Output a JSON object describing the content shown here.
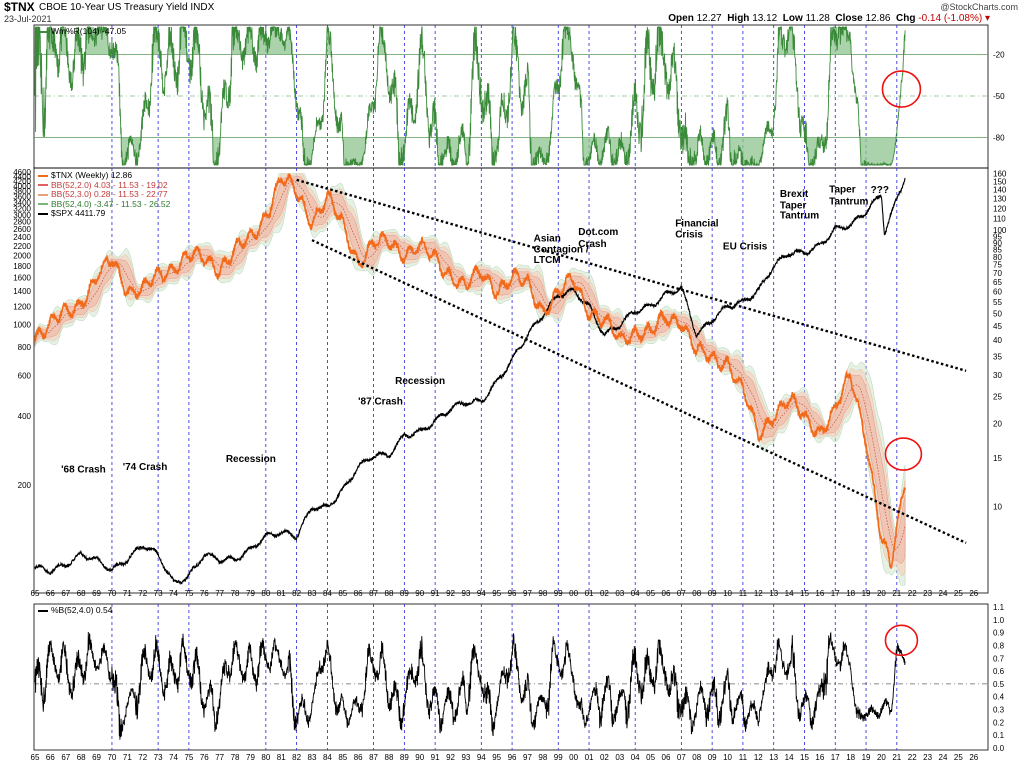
{
  "header": {
    "symbol": "$TNX",
    "name": "CBOE 10-Year US Treasury Yield INDX",
    "date": "23-Jul-2021",
    "open_label": "Open",
    "open": "12.27",
    "high_label": "High",
    "high": "13.12",
    "low_label": "Low",
    "low": "11.28",
    "close_label": "Close",
    "close": "12.86",
    "chg_label": "Chg",
    "chg": "-0.14 (-1.08%)",
    "watermark": "@StockCharts.com"
  },
  "colors": {
    "tnx": "#f26a1b",
    "spx": "#000000",
    "bb2": "#e06060",
    "bb3": "#e8a078",
    "bb4": "#78b878",
    "willr": "#3a8a3a",
    "vlines": "#2222dd",
    "circles": "#ee1111"
  },
  "legend_top": {
    "label": "Wm%R(104) -47.05"
  },
  "legend_main": [
    {
      "label": "$TNX (Weekly) 12.86",
      "color": "#f26a1b"
    },
    {
      "label": "BB(52,2.0) 4.03 - 11.53 - 19.02",
      "color": "#e06060"
    },
    {
      "label": "BB(52,3.0) 0.28 - 11.53 - 22.77",
      "color": "#e8a078"
    },
    {
      "label": "BB(52,4.0) -3.47 - 11.53 - 26.52",
      "color": "#78b878"
    },
    {
      "label": "$SPX 4411.79",
      "color": "#000000"
    }
  ],
  "legend_bottom": {
    "label": "%B(52,4.0) 0.54"
  },
  "chart_data": [
    {
      "type": "line",
      "title": "Wm%R(104)",
      "ylim": [
        -100,
        0
      ],
      "yticks": [
        "-20",
        "-50",
        "-80"
      ],
      "reference_lines": [
        -20,
        -50,
        -80
      ],
      "last_value": -47.05
    },
    {
      "type": "line",
      "title": "CBOE 10-Year US Treasury Yield INDX",
      "yscale": "log",
      "right_ticks": [
        "160",
        "150",
        "140",
        "130",
        "120",
        "110",
        "100",
        "95",
        "90",
        "85",
        "80",
        "75",
        "70",
        "65",
        "60",
        "55",
        "50",
        "45",
        "40",
        "35",
        "30",
        "25",
        "20",
        "15",
        "10"
      ],
      "left_ticks": [
        "4600",
        "4400",
        "4200",
        "4000",
        "3800",
        "3600",
        "3400",
        "3200",
        "3000",
        "2800",
        "2600",
        "2400",
        "2200",
        "2000",
        "1800",
        "1600",
        "1400",
        "1200",
        "1000",
        "800",
        "600",
        "400",
        "200"
      ],
      "x_years": [
        "65",
        "66",
        "67",
        "68",
        "69",
        "70",
        "71",
        "72",
        "73",
        "74",
        "75",
        "76",
        "77",
        "78",
        "79",
        "80",
        "81",
        "82",
        "83",
        "84",
        "85",
        "86",
        "87",
        "88",
        "89",
        "90",
        "91",
        "92",
        "93",
        "94",
        "95",
        "96",
        "97",
        "98",
        "99",
        "00",
        "01",
        "02",
        "03",
        "04",
        "05",
        "06",
        "07",
        "08",
        "09",
        "10",
        "11",
        "12",
        "13",
        "14",
        "15",
        "16",
        "17",
        "18",
        "19",
        "20",
        "21",
        "22",
        "23",
        "24",
        "25",
        "26"
      ],
      "series": [
        {
          "name": "$TNX (Weekly)",
          "x": [
            1965,
            1966,
            1967,
            1968,
            1969,
            1970,
            1971,
            1972,
            1973,
            1974,
            1975,
            1976,
            1977,
            1978,
            1979,
            1980,
            1981,
            1982,
            1983,
            1984,
            1985,
            1986,
            1987,
            1988,
            1989,
            1990,
            1991,
            1992,
            1993,
            1994,
            1995,
            1996,
            1997,
            1998,
            1999,
            2000,
            2001,
            2002,
            2003,
            2004,
            2005,
            2006,
            2007,
            2008,
            2009,
            2010,
            2011,
            2012,
            2013,
            2014,
            2015,
            2016,
            2017,
            2018,
            2019,
            2020,
            2020.6,
            2021.55
          ],
          "y": [
            42,
            45,
            50,
            56,
            66,
            78,
            62,
            60,
            68,
            75,
            80,
            78,
            74,
            84,
            92,
            116,
            152,
            136,
            110,
            130,
            104,
            78,
            88,
            90,
            84,
            86,
            78,
            70,
            62,
            70,
            62,
            66,
            64,
            52,
            58,
            66,
            52,
            46,
            40,
            44,
            42,
            48,
            48,
            36,
            34,
            34,
            26,
            18,
            22,
            24,
            21,
            19,
            22,
            30,
            18,
            7.5,
            6,
            12.86
          ]
        },
        {
          "name": "$SPX",
          "x": [
            1965,
            1966,
            1967,
            1968,
            1969,
            1970,
            1971,
            1972,
            1973,
            1974,
            1975,
            1976,
            1977,
            1978,
            1979,
            1980,
            1981,
            1982,
            1983,
            1984,
            1985,
            1986,
            1987,
            1988,
            1989,
            1990,
            1991,
            1992,
            1993,
            1994,
            1995,
            1996,
            1997,
            1998,
            1999,
            2000,
            2001,
            2002,
            2003,
            2004,
            2005,
            2006,
            2007,
            2008,
            2009,
            2010,
            2011,
            2012,
            2013,
            2014,
            2015,
            2016,
            2017,
            2018,
            2019,
            2020,
            2020.2,
            2021.55
          ],
          "y": [
            88,
            85,
            90,
            100,
            95,
            85,
            95,
            110,
            100,
            75,
            80,
            100,
            95,
            95,
            105,
            120,
            125,
            120,
            160,
            160,
            190,
            240,
            270,
            270,
            330,
            340,
            380,
            430,
            460,
            460,
            560,
            700,
            900,
            1100,
            1350,
            1400,
            1200,
            900,
            1000,
            1150,
            1200,
            1350,
            1450,
            900,
            1050,
            1200,
            1250,
            1400,
            1800,
            2050,
            2050,
            2200,
            2600,
            2700,
            3100,
            3700,
            2500,
            4411.79
          ]
        }
      ],
      "trend_lines": [
        {
          "from": [
            1982,
            152
          ],
          "to": [
            2025.5,
            31
          ]
        },
        {
          "from": [
            1983,
            92
          ],
          "to": [
            2025.5,
            7.4
          ]
        }
      ],
      "annotations": [
        "'68 Crash",
        "'74 Crash",
        "Recession",
        "'87 Crash",
        "Recession",
        "Asian",
        "Contagion /",
        "LTCM",
        "Dot.com",
        "Crash",
        "Financial",
        "Crisis",
        "EU Crisis",
        "Brexit",
        "Taper",
        "Tantrum",
        "Taper",
        "Tantrum",
        "???"
      ]
    },
    {
      "type": "line",
      "title": "%B(52,4.0)",
      "ylim": [
        0,
        1.1
      ],
      "yticks": [
        "1.1",
        "1.0",
        "0.9",
        "0.8",
        "0.7",
        "0.6",
        "0.5",
        "0.4",
        "0.3",
        "0.2",
        "0.1",
        "0.0"
      ],
      "reference_lines": [
        0.5
      ],
      "last_value": 0.54
    }
  ]
}
